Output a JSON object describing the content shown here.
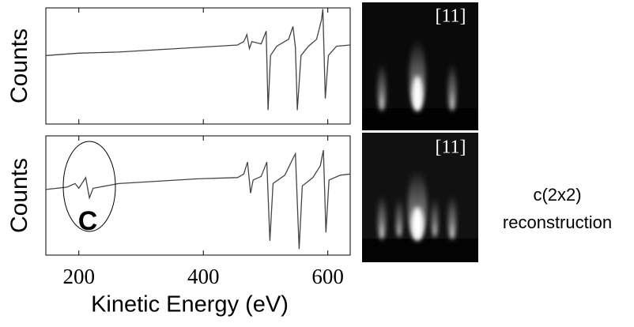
{
  "chart_data": [
    {
      "type": "line",
      "ylabel": "Counts",
      "x": [
        147,
        200,
        264,
        328,
        391,
        455,
        465,
        470,
        474,
        478,
        493,
        501,
        504,
        508,
        518,
        537,
        544,
        548,
        551,
        557,
        569,
        582,
        590,
        592,
        596,
        601,
        614,
        636
      ],
      "series": [
        {
          "color": "#444444",
          "values": [
            59,
            61,
            62,
            64,
            66,
            68,
            71,
            77,
            65,
            71,
            69,
            80,
            12,
            59,
            67,
            73,
            84,
            66,
            12,
            59,
            67,
            73,
            90,
            99,
            22,
            59,
            67,
            68
          ]
        }
      ],
      "xlim": [
        147,
        636
      ],
      "ylim": [
        0,
        100
      ]
    },
    {
      "type": "line",
      "ylabel": "Counts",
      "xlabel": "Kinetic Energy (eV)",
      "annotation": "C",
      "x": [
        147,
        181,
        194,
        200,
        211,
        217,
        223,
        264,
        328,
        391,
        455,
        465,
        471,
        476,
        480,
        493,
        502,
        507,
        512,
        531,
        544,
        548,
        554,
        559,
        576,
        588,
        593,
        597,
        602,
        620,
        636
      ],
      "series": [
        {
          "color": "#444444",
          "values": [
            55,
            57,
            60,
            56,
            65,
            48,
            56,
            60,
            62,
            64,
            65,
            68,
            78,
            52,
            63,
            66,
            78,
            12,
            60,
            67,
            81,
            85,
            5,
            58,
            65,
            75,
            88,
            19,
            63,
            67,
            68
          ]
        }
      ],
      "xlim": [
        147,
        636
      ],
      "ylim": [
        0,
        100
      ],
      "xticks": [
        200,
        400,
        600
      ]
    }
  ],
  "images": [
    {
      "label": "[11]"
    },
    {
      "label": "[11]"
    }
  ],
  "caption": [
    "c(2x2)",
    "reconstruction"
  ]
}
